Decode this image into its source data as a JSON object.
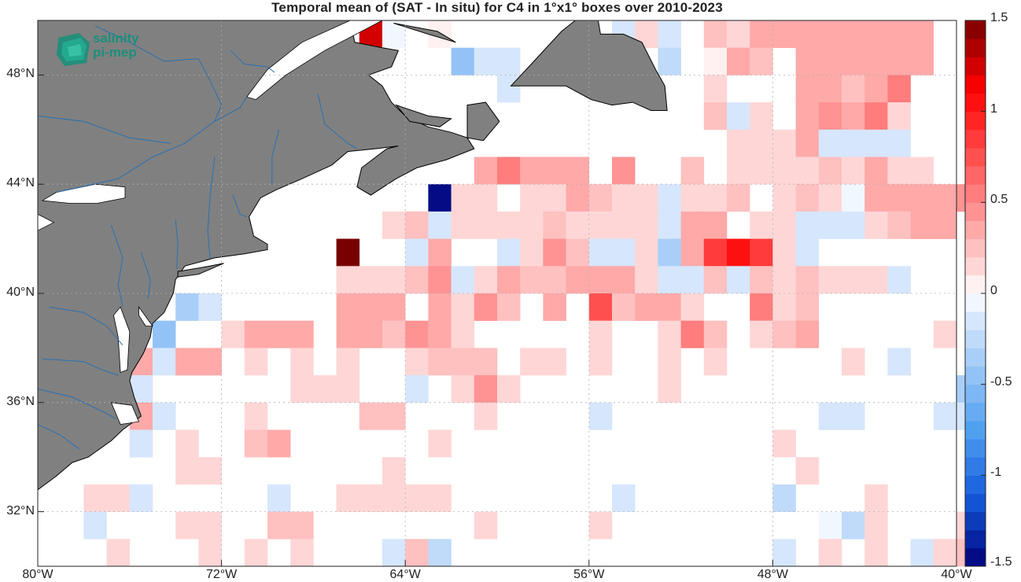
{
  "title": "Temporal mean of (SAT - In situ) for C4 in 1°x1° boxes over 2010-2023",
  "logo": {
    "line1": "salinity",
    "line2": "pi-mep"
  },
  "axes": {
    "lon_min": -80,
    "lon_max": -40,
    "lat_min": 30,
    "lat_max": 50,
    "x_ticks": [
      {
        "value": -80,
        "label": "80°W"
      },
      {
        "value": -72,
        "label": "72°W"
      },
      {
        "value": -64,
        "label": "64°W"
      },
      {
        "value": -56,
        "label": "56°W"
      },
      {
        "value": -48,
        "label": "48°W"
      },
      {
        "value": -40,
        "label": "40°W"
      }
    ],
    "y_ticks": [
      {
        "value": 48,
        "label": "48°N"
      },
      {
        "value": 44,
        "label": "44°N"
      },
      {
        "value": 40,
        "label": "40°N"
      },
      {
        "value": 36,
        "label": "36°N"
      },
      {
        "value": 32,
        "label": "32°N"
      }
    ],
    "grid": true
  },
  "colorbar": {
    "min": -1.5,
    "max": 1.5,
    "levels": 30,
    "ticks": [
      {
        "value": 1.5,
        "label": "1.5"
      },
      {
        "value": 1,
        "label": "1"
      },
      {
        "value": 0.5,
        "label": "0.5"
      },
      {
        "value": 0,
        "label": "0"
      },
      {
        "value": -0.5,
        "label": "-0.5"
      },
      {
        "value": -1,
        "label": "-1"
      },
      {
        "value": -1.5,
        "label": "-1.5"
      }
    ]
  },
  "colors": {
    "land": "#808080",
    "coast": "#000000",
    "river": "#2a6fb0",
    "grid": "#b0b0b0"
  },
  "chart_data": {
    "type": "heatmap",
    "cell_size_deg": 1,
    "note_units": "cells listed as [lon_west, lat_south, value]",
    "cells": [
      [
        -66,
        49,
        1.2
      ],
      [
        -65,
        49,
        -0.05
      ],
      [
        -63,
        49,
        0.05
      ],
      [
        -62,
        48,
        -0.5
      ],
      [
        -61,
        48,
        -0.1
      ],
      [
        -60,
        48,
        -0.1
      ],
      [
        -60,
        47,
        -0.1
      ],
      [
        -55,
        49,
        -0.2
      ],
      [
        -54,
        49,
        0.1
      ],
      [
        -53,
        49,
        -0.2
      ],
      [
        -53,
        48,
        -0.25
      ],
      [
        -51,
        49,
        0.2
      ],
      [
        -50,
        49,
        0.1
      ],
      [
        -49,
        49,
        0.4
      ],
      [
        -48,
        49,
        0.4
      ],
      [
        -47,
        49,
        0.4
      ],
      [
        -46,
        49,
        0.4
      ],
      [
        -45,
        49,
        0.4
      ],
      [
        -44,
        49,
        0.4
      ],
      [
        -43,
        49,
        0.4
      ],
      [
        -42,
        49,
        0.35
      ],
      [
        -51,
        48,
        0.05
      ],
      [
        -50,
        48,
        0.4
      ],
      [
        -49,
        48,
        0.25
      ],
      [
        -47,
        48,
        0.4
      ],
      [
        -46,
        48,
        0.4
      ],
      [
        -45,
        48,
        0.4
      ],
      [
        -44,
        48,
        0.35
      ],
      [
        -43,
        48,
        0.35
      ],
      [
        -42,
        48,
        0.35
      ],
      [
        -51,
        47,
        0.1
      ],
      [
        -47,
        47,
        0.35
      ],
      [
        -46,
        47,
        0.4
      ],
      [
        -45,
        47,
        0.25
      ],
      [
        -44,
        47,
        0.4
      ],
      [
        -43,
        47,
        0.5
      ],
      [
        -51,
        46,
        0.25
      ],
      [
        -50,
        46,
        -0.2
      ],
      [
        -49,
        46,
        0.1
      ],
      [
        -47,
        46,
        0.4
      ],
      [
        -46,
        46,
        0.45
      ],
      [
        -45,
        46,
        0.4
      ],
      [
        -44,
        46,
        0.55
      ],
      [
        -43,
        46,
        0.15
      ],
      [
        -50,
        45,
        0.1
      ],
      [
        -49,
        45,
        0.1
      ],
      [
        -48,
        45,
        0.1
      ],
      [
        -47,
        45,
        0.3
      ],
      [
        -46,
        45,
        -0.15
      ],
      [
        -45,
        45,
        -0.15
      ],
      [
        -44,
        45,
        -0.15
      ],
      [
        -43,
        45,
        -0.15
      ],
      [
        -50,
        44,
        0.1
      ],
      [
        -49,
        44,
        0.1
      ],
      [
        -48,
        44,
        0.1
      ],
      [
        -47,
        44,
        0.1
      ],
      [
        -46,
        44,
        0.25
      ],
      [
        -45,
        44,
        0.1
      ],
      [
        -44,
        44,
        0.4
      ],
      [
        -43,
        44,
        0.1
      ],
      [
        -42,
        44,
        0.1
      ],
      [
        -61,
        44,
        0.35
      ],
      [
        -60,
        44,
        0.55
      ],
      [
        -59,
        44,
        0.4
      ],
      [
        -58,
        44,
        0.4
      ],
      [
        -57,
        44,
        0.4
      ],
      [
        -55,
        44,
        0.45
      ],
      [
        -52,
        44,
        0.25
      ],
      [
        -63,
        43,
        -1.5
      ],
      [
        -62,
        43,
        0.1
      ],
      [
        -61,
        43,
        0.15
      ],
      [
        -59,
        43,
        0.1
      ],
      [
        -58,
        43,
        0.1
      ],
      [
        -57,
        43,
        0.3
      ],
      [
        -56,
        43,
        0.25
      ],
      [
        -55,
        43,
        0.15
      ],
      [
        -54,
        43,
        0.15
      ],
      [
        -53,
        43,
        -0.1
      ],
      [
        -52,
        43,
        0.1
      ],
      [
        -51,
        43,
        0.15
      ],
      [
        -50,
        43,
        0.25
      ],
      [
        -48,
        43,
        0.1
      ],
      [
        -47,
        43,
        0.25
      ],
      [
        -46,
        43,
        0.1
      ],
      [
        -45,
        43,
        -0.05
      ],
      [
        -44,
        43,
        0.35
      ],
      [
        -43,
        43,
        0.35
      ],
      [
        -42,
        43,
        0.35
      ],
      [
        -41,
        43,
        0.35
      ],
      [
        -40,
        43,
        0.45
      ],
      [
        -65,
        42,
        0.15
      ],
      [
        -64,
        42,
        0.25
      ],
      [
        -63,
        42,
        -0.15
      ],
      [
        -62,
        42,
        0.15
      ],
      [
        -61,
        42,
        0.15
      ],
      [
        -60,
        42,
        0.1
      ],
      [
        -59,
        42,
        0.1
      ],
      [
        -58,
        42,
        0.2
      ],
      [
        -57,
        42,
        0.1
      ],
      [
        -56,
        42,
        0.15
      ],
      [
        -55,
        42,
        0.15
      ],
      [
        -54,
        42,
        0.15
      ],
      [
        -53,
        42,
        -0.2
      ],
      [
        -52,
        42,
        0.4
      ],
      [
        -51,
        42,
        0.4
      ],
      [
        -49,
        42,
        0.1
      ],
      [
        -48,
        42,
        0.1
      ],
      [
        -47,
        42,
        -0.15
      ],
      [
        -46,
        42,
        -0.15
      ],
      [
        -45,
        42,
        -0.1
      ],
      [
        -44,
        42,
        0.1
      ],
      [
        -43,
        42,
        0.2
      ],
      [
        -42,
        42,
        0.3
      ],
      [
        -41,
        42,
        0.3
      ],
      [
        -67,
        41,
        1.5
      ],
      [
        -64,
        41,
        -0.1
      ],
      [
        -63,
        41,
        0.35
      ],
      [
        -60,
        41,
        -0.1
      ],
      [
        -59,
        41,
        0.1
      ],
      [
        -58,
        41,
        0.45
      ],
      [
        -57,
        41,
        0.25
      ],
      [
        -56,
        41,
        -0.1
      ],
      [
        -55,
        41,
        -0.2
      ],
      [
        -54,
        41,
        0.1
      ],
      [
        -53,
        41,
        -0.3
      ],
      [
        -52,
        41,
        0.4
      ],
      [
        -51,
        41,
        0.9
      ],
      [
        -50,
        41,
        1.0
      ],
      [
        -49,
        41,
        0.9
      ],
      [
        -48,
        41,
        0.1
      ],
      [
        -47,
        41,
        -0.1
      ],
      [
        -67,
        40,
        0.15
      ],
      [
        -66,
        40,
        0.15
      ],
      [
        -65,
        40,
        0.15
      ],
      [
        -64,
        40,
        0.25
      ],
      [
        -63,
        40,
        0.45
      ],
      [
        -62,
        40,
        -0.1
      ],
      [
        -61,
        40,
        0.1
      ],
      [
        -60,
        40,
        0.3
      ],
      [
        -59,
        40,
        0.25
      ],
      [
        -58,
        40,
        0.25
      ],
      [
        -57,
        40,
        0.3
      ],
      [
        -56,
        40,
        0.35
      ],
      [
        -55,
        40,
        0.35
      ],
      [
        -54,
        40,
        0.1
      ],
      [
        -53,
        40,
        -0.15
      ],
      [
        -52,
        40,
        -0.1
      ],
      [
        -51,
        40,
        0.2
      ],
      [
        -50,
        40,
        -0.1
      ],
      [
        -49,
        40,
        0.25
      ],
      [
        -48,
        40,
        0.15
      ],
      [
        -47,
        40,
        0.2
      ],
      [
        -46,
        40,
        0.15
      ],
      [
        -45,
        40,
        0.15
      ],
      [
        -44,
        40,
        0.1
      ],
      [
        -43,
        40,
        -0.1
      ],
      [
        -74,
        39,
        -0.35
      ],
      [
        -73,
        39,
        -0.1
      ],
      [
        -67,
        39,
        0.3
      ],
      [
        -66,
        39,
        0.3
      ],
      [
        -65,
        39,
        0.3
      ],
      [
        -63,
        39,
        0.35
      ],
      [
        -62,
        39,
        0.15
      ],
      [
        -61,
        39,
        0.45
      ],
      [
        -60,
        39,
        0.2
      ],
      [
        -58,
        39,
        0.35
      ],
      [
        -56,
        39,
        0.75
      ],
      [
        -55,
        39,
        0.25
      ],
      [
        -54,
        39,
        0.3
      ],
      [
        -53,
        39,
        0.3
      ],
      [
        -52,
        39,
        0.15
      ],
      [
        -49,
        39,
        0.55
      ],
      [
        -48,
        39,
        0.1
      ],
      [
        -47,
        39,
        0.25
      ],
      [
        -75,
        38,
        -0.5
      ],
      [
        -72,
        38,
        0.1
      ],
      [
        -71,
        38,
        0.3
      ],
      [
        -70,
        38,
        0.35
      ],
      [
        -69,
        38,
        0.35
      ],
      [
        -67,
        38,
        0.3
      ],
      [
        -66,
        38,
        0.3
      ],
      [
        -65,
        38,
        0.2
      ],
      [
        -64,
        38,
        0.45
      ],
      [
        -63,
        38,
        0.35
      ],
      [
        -62,
        38,
        0.15
      ],
      [
        -56,
        38,
        0.1
      ],
      [
        -53,
        38,
        0.1
      ],
      [
        -52,
        38,
        0.55
      ],
      [
        -51,
        38,
        0.25
      ],
      [
        -49,
        38,
        0.15
      ],
      [
        -48,
        38,
        0.25
      ],
      [
        -47,
        38,
        0.35
      ],
      [
        -41,
        38,
        0.15
      ],
      [
        -76,
        37,
        0.35
      ],
      [
        -75,
        37,
        -0.1
      ],
      [
        -74,
        37,
        0.35
      ],
      [
        -73,
        37,
        0.35
      ],
      [
        -71,
        37,
        0.15
      ],
      [
        -69,
        37,
        0.1
      ],
      [
        -67,
        37,
        0.1
      ],
      [
        -64,
        37,
        0.15
      ],
      [
        -63,
        37,
        0.25
      ],
      [
        -62,
        37,
        0.25
      ],
      [
        -61,
        37,
        0.25
      ],
      [
        -59,
        37,
        0.15
      ],
      [
        -58,
        37,
        0.15
      ],
      [
        -56,
        37,
        0.1
      ],
      [
        -53,
        37,
        0.1
      ],
      [
        -51,
        37,
        0.1
      ],
      [
        -45,
        37,
        0.1
      ],
      [
        -43,
        37,
        -0.1
      ],
      [
        -76,
        36,
        -0.2
      ],
      [
        -69,
        36,
        0.1
      ],
      [
        -68,
        36,
        0.15
      ],
      [
        -67,
        36,
        0.15
      ],
      [
        -64,
        36,
        -0.1
      ],
      [
        -62,
        36,
        0.15
      ],
      [
        -61,
        36,
        0.45
      ],
      [
        -60,
        36,
        0.1
      ],
      [
        -53,
        36,
        0.1
      ],
      [
        -40,
        36,
        -0.4
      ],
      [
        -76,
        35,
        0.35
      ],
      [
        -75,
        35,
        -0.1
      ],
      [
        -71,
        35,
        0.1
      ],
      [
        -66,
        35,
        0.2
      ],
      [
        -65,
        35,
        0.2
      ],
      [
        -61,
        35,
        0.15
      ],
      [
        -56,
        35,
        -0.1
      ],
      [
        -46,
        35,
        -0.1
      ],
      [
        -45,
        35,
        -0.1
      ],
      [
        -41,
        35,
        -0.1
      ],
      [
        -40,
        35,
        -0.1
      ],
      [
        -76,
        34,
        -0.1
      ],
      [
        -74,
        34,
        0.1
      ],
      [
        -71,
        34,
        0.2
      ],
      [
        -70,
        34,
        0.3
      ],
      [
        -63,
        34,
        0.15
      ],
      [
        -48,
        34,
        0.15
      ],
      [
        -74,
        33,
        0.1
      ],
      [
        -73,
        33,
        0.1
      ],
      [
        -65,
        33,
        0.15
      ],
      [
        -47,
        33,
        0.1
      ],
      [
        -78,
        32,
        0.15
      ],
      [
        -77,
        32,
        0.15
      ],
      [
        -76,
        32,
        -0.1
      ],
      [
        -70,
        32,
        -0.1
      ],
      [
        -67,
        32,
        0.15
      ],
      [
        -66,
        32,
        0.15
      ],
      [
        -65,
        32,
        0.1
      ],
      [
        -64,
        32,
        0.15
      ],
      [
        -63,
        32,
        0.15
      ],
      [
        -55,
        32,
        -0.1
      ],
      [
        -48,
        32,
        -0.25
      ],
      [
        -44,
        32,
        0.15
      ],
      [
        -78,
        31,
        -0.2
      ],
      [
        -74,
        31,
        0.15
      ],
      [
        -73,
        31,
        0.15
      ],
      [
        -70,
        31,
        0.25
      ],
      [
        -69,
        31,
        0.25
      ],
      [
        -61,
        31,
        0.15
      ],
      [
        -56,
        31,
        0.1
      ],
      [
        -46,
        31,
        -0.05
      ],
      [
        -45,
        31,
        -0.25
      ],
      [
        -44,
        31,
        0.15
      ],
      [
        -40,
        31,
        0.15
      ],
      [
        -77,
        30,
        0.15
      ],
      [
        -73,
        30,
        0.15
      ],
      [
        -71,
        30,
        0.15
      ],
      [
        -69,
        30,
        0.1
      ],
      [
        -65,
        30,
        -0.1
      ],
      [
        -64,
        30,
        0.2
      ],
      [
        -63,
        30,
        -0.25
      ],
      [
        -48,
        30,
        -0.1
      ],
      [
        -46,
        30,
        0.15
      ],
      [
        -44,
        30,
        0.15
      ],
      [
        -42,
        30,
        -0.1
      ],
      [
        -41,
        30,
        0.15
      ],
      [
        -40,
        30,
        0.2
      ]
    ]
  }
}
